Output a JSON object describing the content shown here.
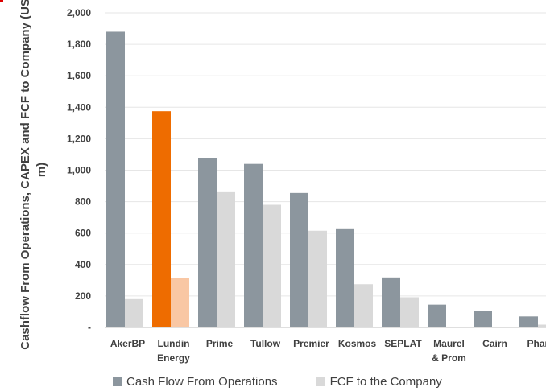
{
  "chart_data": {
    "type": "bar",
    "ylabel": "Cashflow From Operations, CAPEX and FCF to Company (USD m)",
    "ylim": [
      0,
      2000
    ],
    "yticks": [
      "-",
      "200",
      "400",
      "600",
      "800",
      "1,000",
      "1,200",
      "1,400",
      "1,600",
      "1,800",
      "2,000"
    ],
    "grid": true,
    "legend_position": "bottom",
    "categories": [
      [
        "AkerBP"
      ],
      [
        "Lundin",
        "Energy"
      ],
      [
        "Prime"
      ],
      [
        "Tullow"
      ],
      [
        "Premier"
      ],
      [
        "Kosmos"
      ],
      [
        "SEPLAT"
      ],
      [
        "Maurel",
        "& Prom"
      ],
      [
        "Cairn"
      ],
      [
        "Pharo"
      ]
    ],
    "series": [
      {
        "name": "Cash Flow From Operations",
        "color": "#8c969e",
        "values": [
          1880,
          1375,
          1075,
          1040,
          855,
          625,
          318,
          145,
          105,
          70
        ]
      },
      {
        "name": "FCF to the Company",
        "color": "#d9d9d9",
        "values": [
          180,
          315,
          860,
          780,
          615,
          275,
          192,
          2,
          3,
          18
        ]
      }
    ],
    "highlight": {
      "index": 1,
      "colors": [
        "#ee6c00",
        "#f9c7a4"
      ]
    }
  }
}
